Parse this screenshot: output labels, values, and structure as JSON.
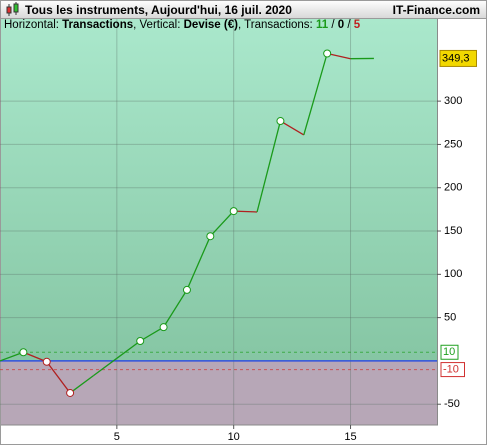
{
  "chart_data": {
    "type": "line",
    "title": "Tous les instruments, Aujourd'hui, 16 juil. 2020",
    "brand": "IT-Finance.com",
    "subtitle": [
      "Horizontal: ",
      "Transactions",
      ", Vertical: ",
      "Devise (€)",
      ", Transactions: ",
      "11",
      " / ",
      "0",
      " / ",
      "5"
    ],
    "x": [
      0,
      1,
      2,
      3,
      4,
      5,
      6,
      7,
      8,
      9,
      10,
      11,
      12,
      13,
      14,
      15,
      16
    ],
    "values": [
      0,
      10,
      -1,
      -37,
      -17,
      3,
      23,
      39,
      82,
      144,
      173,
      172,
      277,
      261,
      355,
      349,
      349.3
    ],
    "value_labels": [
      null,
      null,
      null,
      null,
      null,
      null,
      null,
      null,
      null,
      null,
      null,
      null,
      null,
      null,
      null,
      null,
      "349,3"
    ],
    "markers": [
      1,
      2,
      3,
      6,
      7,
      8,
      9,
      10,
      12,
      14
    ],
    "up_color": "#1a9a1a",
    "down_color": "#b02020",
    "xlim": [
      0,
      18.7
    ],
    "ylim": [
      -74,
      396
    ],
    "xticks": [
      5,
      10,
      15
    ],
    "yticks": [
      -50,
      50,
      100,
      150,
      200,
      250,
      300
    ],
    "grid": true,
    "zero_line_color": "#3050e0",
    "reference_lines": [
      {
        "value": 10,
        "label": "10",
        "color": "#20a020"
      },
      {
        "value": -10,
        "label": "-10",
        "color": "#d03030"
      }
    ]
  }
}
